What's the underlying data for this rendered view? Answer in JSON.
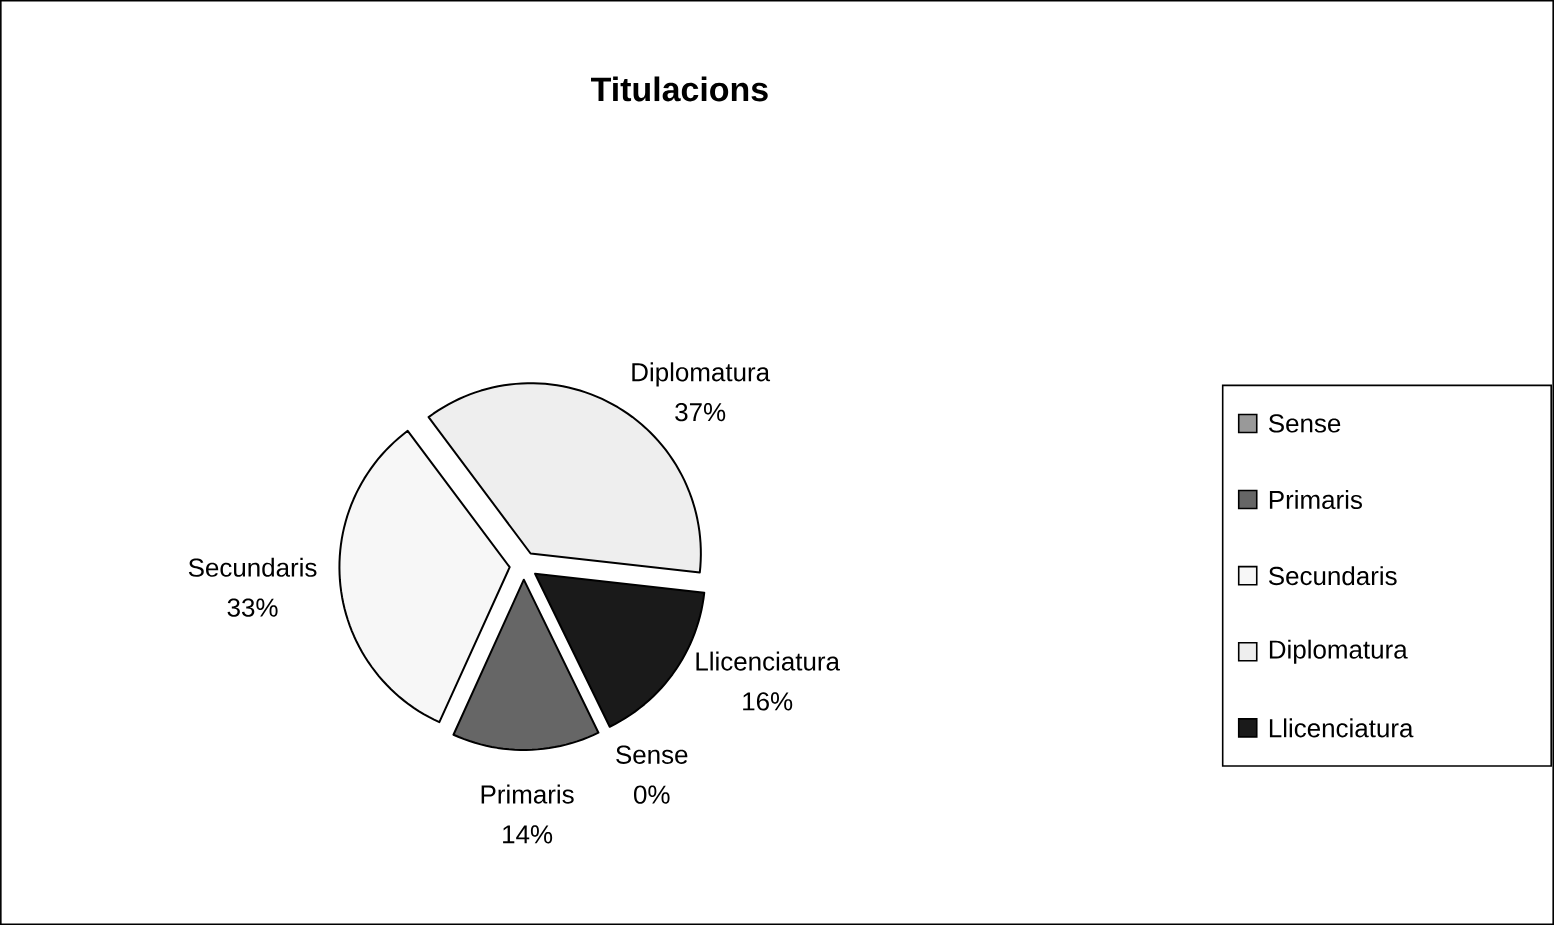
{
  "chart_data": {
    "type": "pie",
    "title": "Titulacions",
    "categories": [
      "Sense",
      "Primaris",
      "Secundaris",
      "Diplomatura",
      "Llicenciatura"
    ],
    "values": [
      0,
      14,
      33,
      37,
      16
    ],
    "value_labels": [
      "0%",
      "14%",
      "33%",
      "37%",
      "16%"
    ],
    "colors": [
      "#999999",
      "#666666",
      "#f7f7f7",
      "#eeeeee",
      "#1a1a1a"
    ],
    "legend": "right"
  }
}
